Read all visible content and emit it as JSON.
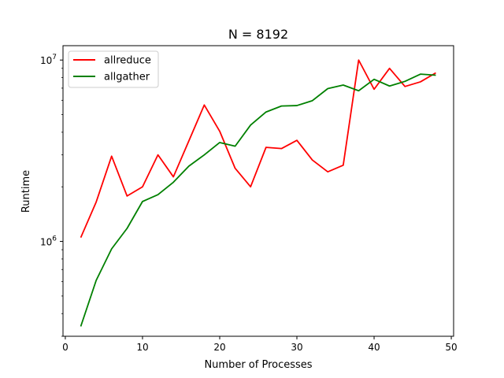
{
  "chart_data": {
    "type": "line",
    "title": "N = 8192",
    "xlabel": "Number of Processes",
    "ylabel": "Runtime",
    "xlim": [
      -0.3,
      50.3
    ],
    "ylim": [
      300000,
      12000000
    ],
    "yscale": "log",
    "grid": false,
    "legend_position": "top-left",
    "x_ticks": [
      0,
      10,
      20,
      30,
      40,
      50
    ],
    "x_tick_labels": [
      "0",
      "10",
      "20",
      "30",
      "40",
      "50"
    ],
    "y_ticks": [
      1000000,
      10000000
    ],
    "y_tick_base": "10",
    "y_tick_exponents": [
      "6",
      "7"
    ],
    "x": [
      2,
      4,
      6,
      8,
      10,
      12,
      14,
      16,
      18,
      20,
      22,
      24,
      26,
      28,
      30,
      32,
      34,
      36,
      38,
      40,
      42,
      44,
      46,
      48
    ],
    "series": [
      {
        "name": "allreduce",
        "color": "#ff0000",
        "values": [
          1050000,
          1650000,
          2950000,
          1780000,
          2000000,
          3000000,
          2270000,
          3580000,
          5650000,
          4050000,
          2530000,
          2000000,
          3300000,
          3250000,
          3610000,
          2810000,
          2420000,
          2630000,
          10000000,
          6900000,
          9000000,
          7150000,
          7580000,
          8500000
        ]
      },
      {
        "name": "allgather",
        "color": "#008000",
        "values": [
          340000,
          610000,
          910000,
          1180000,
          1660000,
          1810000,
          2120000,
          2600000,
          3000000,
          3510000,
          3350000,
          4380000,
          5170000,
          5580000,
          5610000,
          5970000,
          6960000,
          7280000,
          6770000,
          7830000,
          7190000,
          7630000,
          8360000,
          8250000
        ]
      }
    ]
  }
}
